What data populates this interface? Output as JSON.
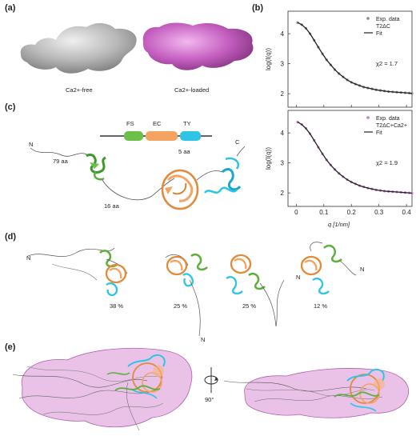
{
  "panels": {
    "a": {
      "label": "(a)",
      "caption_left": "Ca2+-free",
      "caption_right": "Ca2+-loaded",
      "color_free": "#bdbdbd",
      "color_loaded": "#c867c0"
    },
    "b": {
      "label": "(b)",
      "xlabel": "q [1/nm]",
      "ylabel": "log(I(q))"
    },
    "c": {
      "label": "(c)",
      "domains": [
        {
          "name": "FS",
          "color": "#6cc04a"
        },
        {
          "name": "EC",
          "color": "#f4a460"
        },
        {
          "name": "TY",
          "color": "#2ec4e6"
        }
      ],
      "n_term": "N",
      "c_term": "C",
      "linker_1": "79 aa",
      "linker_2": "16 aa",
      "linker_3": "5 aa"
    },
    "d": {
      "label": "(d)",
      "populations": [
        "38 %",
        "25 %",
        "25 %",
        "12 %"
      ],
      "n_label": "N"
    },
    "e": {
      "label": "(e)",
      "rotation": "90°"
    }
  },
  "chart_data": [
    {
      "type": "scatter",
      "legend": [
        {
          "marker": "●",
          "text": "Exp. data"
        },
        {
          "marker": "",
          "text": "T2ΔC"
        },
        {
          "marker": "—",
          "text": "Fit"
        }
      ],
      "annotation": "χ2 = 1.7",
      "xlim": [
        -0.03,
        0.42
      ],
      "ylim": [
        1.55,
        4.75
      ],
      "xticks": [
        0,
        0.1,
        0.2,
        0.3,
        0.4
      ],
      "yticks": [
        2,
        3,
        4
      ],
      "series": [
        {
          "name": "Exp. data",
          "color": "#8a8a8a",
          "x": [
            0.005,
            0.02,
            0.035,
            0.05,
            0.065,
            0.08,
            0.095,
            0.11,
            0.125,
            0.14,
            0.155,
            0.17,
            0.185,
            0.2,
            0.215,
            0.23,
            0.245,
            0.26,
            0.275,
            0.29,
            0.305,
            0.32,
            0.335,
            0.35,
            0.365,
            0.38,
            0.395,
            0.41,
            0.42
          ],
          "y": [
            4.37,
            4.3,
            4.18,
            4.0,
            3.78,
            3.55,
            3.33,
            3.13,
            2.96,
            2.8,
            2.67,
            2.56,
            2.46,
            2.38,
            2.32,
            2.27,
            2.22,
            2.19,
            2.16,
            2.13,
            2.11,
            2.09,
            2.07,
            2.06,
            2.05,
            2.04,
            2.03,
            2.02,
            2.01
          ]
        },
        {
          "name": "Fit",
          "color": "#222222",
          "x": [
            0.005,
            0.02,
            0.035,
            0.05,
            0.065,
            0.08,
            0.095,
            0.11,
            0.125,
            0.14,
            0.155,
            0.17,
            0.185,
            0.2,
            0.215,
            0.23,
            0.245,
            0.26,
            0.275,
            0.29,
            0.305,
            0.32,
            0.335,
            0.35,
            0.365,
            0.38,
            0.395,
            0.41,
            0.42
          ],
          "y": [
            4.37,
            4.3,
            4.18,
            4.0,
            3.78,
            3.55,
            3.33,
            3.13,
            2.96,
            2.8,
            2.67,
            2.56,
            2.46,
            2.38,
            2.32,
            2.27,
            2.22,
            2.19,
            2.16,
            2.13,
            2.11,
            2.09,
            2.07,
            2.06,
            2.05,
            2.04,
            2.03,
            2.02,
            2.01
          ]
        }
      ]
    },
    {
      "type": "scatter",
      "legend": [
        {
          "marker": "●",
          "text": "Exp. data"
        },
        {
          "marker": "",
          "text": "T2ΔC+Ca2+"
        },
        {
          "marker": "—",
          "text": "Fit"
        }
      ],
      "annotation": "χ2 = 1.9",
      "xlim": [
        -0.03,
        0.42
      ],
      "ylim": [
        1.55,
        4.75
      ],
      "xticks": [
        0,
        0.1,
        0.2,
        0.3,
        0.4
      ],
      "yticks": [
        2,
        3,
        4
      ],
      "series": [
        {
          "name": "Exp. data",
          "color": "#c878c0",
          "x": [
            0.005,
            0.02,
            0.035,
            0.05,
            0.065,
            0.08,
            0.095,
            0.11,
            0.125,
            0.14,
            0.155,
            0.17,
            0.185,
            0.2,
            0.215,
            0.23,
            0.245,
            0.26,
            0.275,
            0.29,
            0.305,
            0.32,
            0.335,
            0.35,
            0.365,
            0.38,
            0.395,
            0.41,
            0.42
          ],
          "y": [
            4.36,
            4.28,
            4.15,
            3.97,
            3.75,
            3.52,
            3.3,
            3.1,
            2.93,
            2.78,
            2.65,
            2.54,
            2.44,
            2.36,
            2.3,
            2.24,
            2.2,
            2.16,
            2.13,
            2.1,
            2.08,
            2.06,
            2.05,
            2.04,
            2.03,
            2.02,
            2.01,
            2.0,
            1.99
          ]
        },
        {
          "name": "Fit",
          "color": "#222222",
          "x": [
            0.005,
            0.02,
            0.035,
            0.05,
            0.065,
            0.08,
            0.095,
            0.11,
            0.125,
            0.14,
            0.155,
            0.17,
            0.185,
            0.2,
            0.215,
            0.23,
            0.245,
            0.26,
            0.275,
            0.29,
            0.305,
            0.32,
            0.335,
            0.35,
            0.365,
            0.38,
            0.395,
            0.41,
            0.42
          ],
          "y": [
            4.36,
            4.28,
            4.15,
            3.97,
            3.75,
            3.52,
            3.3,
            3.1,
            2.93,
            2.78,
            2.65,
            2.54,
            2.44,
            2.36,
            2.3,
            2.24,
            2.2,
            2.16,
            2.13,
            2.1,
            2.08,
            2.06,
            2.05,
            2.04,
            2.03,
            2.02,
            2.01,
            2.0,
            1.99
          ]
        }
      ]
    }
  ]
}
